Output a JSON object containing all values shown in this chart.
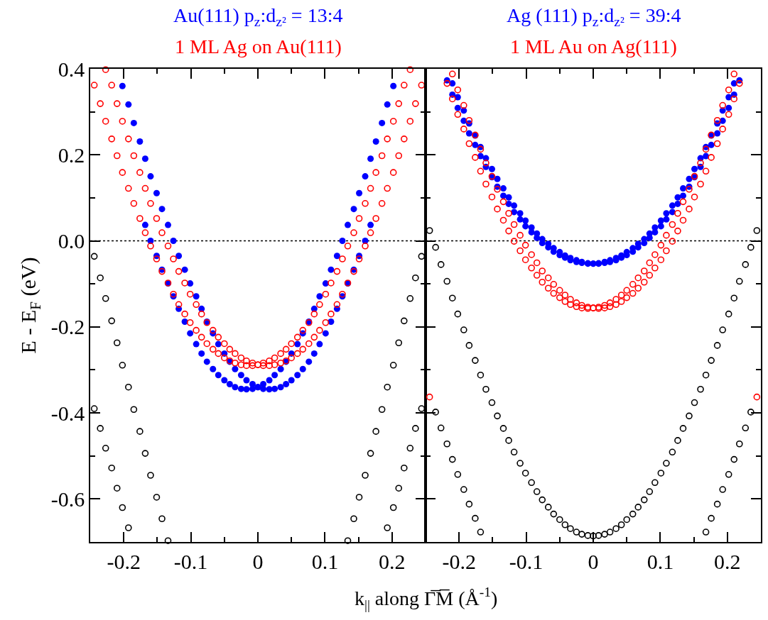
{
  "chart_data": [
    {
      "type": "scatter",
      "xlabel": "k$_{||}$ along Γ̅M̅ (Å$^{-1}$)",
      "ylabel": "E - E$_{F}$ (eV)",
      "xlim": [
        -0.25,
        0.25
      ],
      "ylim": [
        -0.7,
        0.4
      ],
      "xticks": [
        -0.2,
        {
          "value": -0.15,
          "label": null
        },
        -0.1,
        {
          "value": -0.05,
          "label": null
        },
        0,
        {
          "value": 0.05,
          "label": null
        },
        0.1,
        {
          "value": 0.15,
          "label": null
        },
        0.2
      ],
      "yticks": [
        -0.6,
        {
          "value": -0.5,
          "label": null
        },
        -0.4,
        {
          "value": -0.3,
          "label": null
        },
        -0.2,
        {
          "value": -0.1,
          "label": null
        },
        {
          "value": 0,
          "label": "0.0"
        },
        {
          "value": 0.1,
          "label": null
        },
        0.2,
        {
          "value": 0.3,
          "label": null
        },
        0.4
      ],
      "ref_lines": [
        {
          "axis": "y",
          "value": 0,
          "color": "#000000",
          "line_style": "dotted"
        }
      ],
      "series": [
        {
          "color": "#000000",
          "marker": "circle-open",
          "x": [
            -0.244,
            -0.235,
            -0.227,
            -0.218,
            -0.21,
            -0.202,
            -0.193,
            -0.185,
            -0.176,
            -0.168,
            -0.16,
            -0.151,
            -0.143,
            -0.134,
            -0.244,
            -0.235,
            -0.227,
            -0.218,
            -0.21,
            -0.202,
            -0.193,
            0.134,
            0.143,
            0.151,
            0.16,
            0.168,
            0.176,
            0.185,
            0.193,
            0.202,
            0.21,
            0.218,
            0.227,
            0.235,
            0.244,
            0.193,
            0.202,
            0.21,
            0.218,
            0.227,
            0.235,
            0.244
          ],
          "values": [
            -0.036,
            -0.086,
            -0.134,
            -0.186,
            -0.237,
            -0.289,
            -0.34,
            -0.392,
            -0.443,
            -0.494,
            -0.545,
            -0.596,
            -0.646,
            -0.697,
            -0.39,
            -0.436,
            -0.482,
            -0.528,
            -0.575,
            -0.62,
            -0.667,
            -0.697,
            -0.646,
            -0.596,
            -0.545,
            -0.494,
            -0.443,
            -0.392,
            -0.34,
            -0.289,
            -0.237,
            -0.186,
            -0.134,
            -0.086,
            -0.036,
            -0.667,
            -0.62,
            -0.575,
            -0.528,
            -0.482,
            -0.436,
            -0.39
          ]
        },
        {
          "name": "Au(111) p$_{z}$:d$_{z²}$ = 13:4",
          "color": "#0000ff",
          "marker": "circle",
          "x": [
            -0.202,
            -0.193,
            -0.185,
            -0.176,
            -0.168,
            -0.16,
            -0.151,
            -0.143,
            -0.134,
            -0.126,
            -0.118,
            -0.109,
            -0.101,
            -0.092,
            -0.084,
            -0.076,
            -0.067,
            -0.059,
            -0.05,
            -0.042,
            -0.034,
            -0.025,
            -0.017,
            -0.008,
            0,
            0.008,
            0.017,
            0.025,
            0.034,
            0.042,
            0.05,
            0.059,
            0.067,
            0.076,
            0.084,
            0.092,
            0.101,
            0.109,
            0.118,
            0.126,
            0.134,
            0.143,
            0.151,
            0.16,
            0.168,
            -0.168,
            -0.16,
            -0.151,
            -0.143,
            -0.134,
            -0.126,
            -0.118,
            -0.109,
            -0.101,
            -0.092,
            -0.084,
            -0.076,
            -0.067,
            -0.059,
            -0.05,
            -0.042,
            -0.034,
            -0.025,
            -0.017,
            -0.008,
            0,
            0.008,
            0.017,
            0.025,
            0.034,
            0.042,
            0.05,
            0.059,
            0.067,
            0.076,
            0.084,
            0.092,
            0.101,
            0.109,
            0.118,
            0.126,
            0.134,
            0.143,
            0.151,
            0.16,
            0.168,
            0.176,
            0.185,
            0.193,
            0.202
          ],
          "values": [
            0.36,
            0.317,
            0.274,
            0.231,
            0.191,
            0.15,
            0.111,
            0.074,
            0.037,
            0.0,
            -0.035,
            -0.067,
            -0.099,
            -0.129,
            -0.158,
            -0.188,
            -0.215,
            -0.24,
            -0.262,
            -0.281,
            -0.298,
            -0.312,
            -0.324,
            -0.333,
            -0.34,
            -0.344,
            -0.345,
            -0.344,
            -0.34,
            -0.333,
            -0.324,
            -0.312,
            -0.298,
            -0.281,
            -0.262,
            -0.24,
            -0.215,
            -0.188,
            -0.158,
            -0.129,
            -0.099,
            -0.067,
            -0.035,
            0.0,
            0.037,
            0.037,
            0.0,
            -0.035,
            -0.067,
            -0.099,
            -0.129,
            -0.158,
            -0.188,
            -0.215,
            -0.24,
            -0.262,
            -0.281,
            -0.298,
            -0.312,
            -0.324,
            -0.333,
            -0.34,
            -0.344,
            -0.345,
            -0.344,
            -0.34,
            -0.333,
            -0.324,
            -0.312,
            -0.298,
            -0.281,
            -0.262,
            -0.24,
            -0.215,
            -0.188,
            -0.158,
            -0.129,
            -0.099,
            -0.067,
            -0.035,
            0.0,
            0.037,
            0.074,
            0.111,
            0.15,
            0.191,
            0.231,
            0.274,
            0.317,
            0.36
          ]
        },
        {
          "name": "1 ML Ag on Au(111)",
          "color": "#ff0000",
          "marker": "circle-open",
          "x": [
            -0.244,
            -0.235,
            -0.227,
            -0.218,
            -0.21,
            -0.202,
            -0.193,
            -0.185,
            -0.176,
            -0.168,
            -0.16,
            -0.151,
            -0.143,
            -0.134,
            -0.126,
            -0.118,
            -0.109,
            -0.101,
            -0.092,
            -0.084,
            -0.076,
            -0.067,
            -0.059,
            -0.05,
            -0.042,
            -0.034,
            -0.025,
            -0.017,
            -0.008,
            0,
            0.008,
            0.017,
            0.025,
            0.034,
            0.042,
            0.05,
            0.059,
            0.067,
            0.076,
            0.084,
            0.092,
            0.101,
            0.109,
            0.118,
            0.126,
            0.134,
            0.143,
            0.151,
            0.16,
            0.168,
            0.176,
            0.185,
            0.193,
            0.202,
            0.21,
            0.218,
            0.227,
            -0.227,
            -0.218,
            -0.21,
            -0.202,
            -0.193,
            -0.185,
            -0.176,
            -0.168,
            -0.16,
            -0.151,
            -0.143,
            -0.134,
            -0.126,
            -0.118,
            -0.109,
            -0.101,
            -0.092,
            -0.084,
            -0.076,
            -0.067,
            -0.059,
            -0.05,
            -0.042,
            -0.034,
            -0.025,
            -0.017,
            -0.008,
            0,
            0.008,
            0.017,
            0.025,
            0.034,
            0.042,
            0.05,
            0.059,
            0.067,
            0.076,
            0.084,
            0.092,
            0.101,
            0.109,
            0.118,
            0.126,
            0.134,
            0.143,
            0.151,
            0.16,
            0.168,
            0.176,
            0.185,
            0.193,
            0.202,
            0.21,
            0.218,
            0.227,
            0.235,
            0.244
          ],
          "values": [
            0.362,
            0.319,
            0.278,
            0.237,
            0.198,
            0.159,
            0.122,
            0.087,
            0.052,
            0.019,
            -0.012,
            -0.042,
            -0.071,
            -0.098,
            -0.124,
            -0.148,
            -0.17,
            -0.19,
            -0.208,
            -0.224,
            -0.239,
            -0.252,
            -0.262,
            -0.272,
            -0.279,
            -0.284,
            -0.288,
            -0.29,
            -0.29,
            -0.288,
            -0.284,
            -0.279,
            -0.272,
            -0.262,
            -0.252,
            -0.239,
            -0.224,
            -0.208,
            -0.19,
            -0.17,
            -0.148,
            -0.124,
            -0.098,
            -0.071,
            -0.042,
            -0.012,
            0.019,
            0.052,
            0.087,
            0.122,
            0.159,
            0.198,
            0.237,
            0.278,
            0.319,
            0.362,
            0.398,
            0.398,
            0.362,
            0.319,
            0.278,
            0.237,
            0.198,
            0.159,
            0.122,
            0.087,
            0.052,
            0.019,
            -0.012,
            -0.042,
            -0.071,
            -0.098,
            -0.124,
            -0.148,
            -0.17,
            -0.19,
            -0.208,
            -0.224,
            -0.239,
            -0.252,
            -0.262,
            -0.272,
            -0.279,
            -0.284,
            -0.288,
            -0.29,
            -0.29,
            -0.288,
            -0.284,
            -0.279,
            -0.272,
            -0.262,
            -0.252,
            -0.239,
            -0.224,
            -0.208,
            -0.19,
            -0.17,
            -0.148,
            -0.124,
            -0.098,
            -0.071,
            -0.042,
            -0.012,
            0.019,
            0.052,
            0.087,
            0.122,
            0.159,
            0.198,
            0.237,
            0.278,
            0.319,
            0.362
          ]
        }
      ]
    },
    {
      "type": "scatter",
      "tick_labels": "x",
      "xlim": [
        -0.25,
        0.25
      ],
      "ylim": [
        -0.7,
        0.4
      ],
      "xticks": [
        -0.2,
        {
          "value": -0.15,
          "label": null
        },
        -0.1,
        {
          "value": -0.05,
          "label": null
        },
        0,
        {
          "value": 0.05,
          "label": null
        },
        0.1,
        {
          "value": 0.15,
          "label": null
        },
        0.2
      ],
      "yticks": [
        -0.6,
        {
          "value": -0.5,
          "label": null
        },
        -0.4,
        {
          "value": -0.3,
          "label": null
        },
        -0.2,
        {
          "value": -0.1,
          "label": null
        },
        0,
        {
          "value": 0.1,
          "label": null
        },
        0.2,
        {
          "value": 0.3,
          "label": null
        },
        0.4
      ],
      "ref_lines": [
        {
          "axis": "y",
          "value": 0,
          "color": "#000000",
          "line_style": "dotted"
        }
      ],
      "series": [
        {
          "color": "#000000",
          "marker": "circle-open",
          "x": [
            -0.244,
            -0.235,
            -0.227,
            -0.218,
            -0.21,
            -0.202,
            -0.193,
            -0.185,
            -0.176,
            -0.168,
            -0.16,
            -0.151,
            -0.143,
            -0.134,
            -0.126,
            -0.118,
            -0.109,
            -0.101,
            -0.092,
            -0.084,
            -0.076,
            -0.067,
            -0.059,
            -0.05,
            -0.042,
            -0.034,
            -0.025,
            -0.017,
            -0.008,
            0,
            0.008,
            0.017,
            0.025,
            0.034,
            0.042,
            0.05,
            0.059,
            0.067,
            0.076,
            0.084,
            0.092,
            0.101,
            0.109,
            0.118,
            0.126,
            0.134,
            0.143,
            0.151,
            0.16,
            0.168,
            0.176,
            0.185,
            0.193,
            0.202,
            0.21,
            0.218,
            0.227,
            0.235,
            0.244,
            -0.235,
            -0.227,
            -0.218,
            -0.21,
            -0.202,
            -0.193,
            -0.185,
            -0.176,
            -0.168,
            0.168,
            0.176,
            0.185,
            0.193,
            0.202,
            0.21,
            0.218,
            0.227,
            0.235
          ],
          "values": [
            0.024,
            -0.015,
            -0.055,
            -0.094,
            -0.133,
            -0.17,
            -0.207,
            -0.243,
            -0.278,
            -0.312,
            -0.345,
            -0.376,
            -0.407,
            -0.436,
            -0.464,
            -0.491,
            -0.517,
            -0.54,
            -0.562,
            -0.583,
            -0.602,
            -0.619,
            -0.635,
            -0.648,
            -0.66,
            -0.669,
            -0.677,
            -0.682,
            -0.685,
            -0.686,
            -0.685,
            -0.682,
            -0.677,
            -0.669,
            -0.66,
            -0.648,
            -0.635,
            -0.619,
            -0.602,
            -0.583,
            -0.562,
            -0.54,
            -0.517,
            -0.491,
            -0.464,
            -0.436,
            -0.407,
            -0.376,
            -0.345,
            -0.312,
            -0.278,
            -0.243,
            -0.207,
            -0.17,
            -0.133,
            -0.094,
            -0.055,
            -0.015,
            0.024,
            -0.398,
            -0.435,
            -0.472,
            -0.508,
            -0.543,
            -0.578,
            -0.612,
            -0.645,
            -0.677,
            -0.677,
            -0.645,
            -0.612,
            -0.578,
            -0.543,
            -0.508,
            -0.472,
            -0.435,
            -0.398
          ]
        },
        {
          "name": "Ag (111) p$_{z}$:d$_{z²}$ = 39:4",
          "color": "#0000ff",
          "marker": "circle",
          "x": [
            -0.218,
            -0.21,
            -0.202,
            -0.193,
            -0.185,
            -0.176,
            -0.168,
            -0.16,
            -0.151,
            -0.143,
            -0.134,
            -0.126,
            -0.118,
            -0.109,
            -0.101,
            -0.092,
            -0.084,
            -0.076,
            -0.067,
            -0.059,
            -0.05,
            -0.042,
            -0.034,
            -0.025,
            -0.017,
            -0.008,
            0,
            0.008,
            0.017,
            0.025,
            0.034,
            0.042,
            0.05,
            0.059,
            0.067,
            0.076,
            0.084,
            0.092,
            0.101,
            0.109,
            0.118,
            0.126,
            0.134,
            0.143,
            0.151,
            0.16,
            0.168,
            0.176,
            0.185,
            0.193,
            0.202,
            0.21,
            -0.21,
            -0.202,
            -0.193,
            -0.185,
            -0.176,
            -0.168,
            -0.16,
            -0.151,
            -0.143,
            -0.134,
            -0.126,
            -0.118,
            -0.109,
            -0.101,
            -0.092,
            -0.084,
            -0.076,
            -0.067,
            -0.059,
            -0.05,
            -0.042,
            -0.034,
            -0.025,
            -0.017,
            -0.008,
            0,
            0.008,
            0.017,
            0.025,
            0.034,
            0.042,
            0.05,
            0.059,
            0.067,
            0.076,
            0.084,
            0.092,
            0.101,
            0.109,
            0.118,
            0.126,
            0.134,
            0.143,
            0.151,
            0.16,
            0.168,
            0.176,
            0.185,
            0.193,
            0.202,
            0.21,
            0.218
          ],
          "values": [
            0.373,
            0.34,
            0.309,
            0.279,
            0.25,
            0.223,
            0.197,
            0.172,
            0.148,
            0.126,
            0.105,
            0.086,
            0.067,
            0.05,
            0.034,
            0.02,
            0.007,
            -0.005,
            -0.015,
            -0.025,
            -0.033,
            -0.039,
            -0.045,
            -0.049,
            -0.051,
            -0.053,
            -0.053,
            -0.052,
            -0.049,
            -0.045,
            -0.04,
            -0.034,
            -0.026,
            -0.017,
            -0.007,
            0.004,
            0.017,
            0.031,
            0.047,
            0.064,
            0.082,
            0.101,
            0.122,
            0.144,
            0.167,
            0.192,
            0.218,
            0.245,
            0.273,
            0.303,
            0.334,
            0.366,
            0.366,
            0.334,
            0.303,
            0.273,
            0.245,
            0.218,
            0.192,
            0.167,
            0.144,
            0.122,
            0.101,
            0.082,
            0.064,
            0.047,
            0.031,
            0.017,
            0.004,
            -0.007,
            -0.017,
            -0.026,
            -0.034,
            -0.04,
            -0.045,
            -0.049,
            -0.052,
            -0.053,
            -0.053,
            -0.051,
            -0.049,
            -0.045,
            -0.039,
            -0.033,
            -0.025,
            -0.015,
            -0.005,
            0.007,
            0.02,
            0.034,
            0.05,
            0.067,
            0.086,
            0.105,
            0.126,
            0.148,
            0.172,
            0.197,
            0.223,
            0.25,
            0.279,
            0.309,
            0.34,
            0.373
          ]
        },
        {
          "name": "1 ML Au on Ag(111)",
          "color": "#ff0000",
          "marker": "circle-open",
          "x": [
            -0.21,
            -0.202,
            -0.193,
            -0.185,
            -0.176,
            -0.168,
            -0.16,
            -0.151,
            -0.143,
            -0.134,
            -0.126,
            -0.118,
            -0.109,
            -0.101,
            -0.092,
            -0.084,
            -0.076,
            -0.067,
            -0.059,
            -0.05,
            -0.042,
            -0.034,
            -0.025,
            -0.017,
            -0.008,
            0,
            0.008,
            0.017,
            0.025,
            0.034,
            0.042,
            0.05,
            0.059,
            0.067,
            0.076,
            0.084,
            0.092,
            0.101,
            0.109,
            0.118,
            0.126,
            0.134,
            0.143,
            0.151,
            0.16,
            0.168,
            0.176,
            0.185,
            0.193,
            0.202,
            0.21,
            0.218,
            -0.218,
            -0.21,
            -0.202,
            -0.193,
            -0.185,
            -0.176,
            -0.168,
            -0.16,
            -0.151,
            -0.143,
            -0.134,
            -0.126,
            -0.118,
            -0.109,
            -0.101,
            -0.092,
            -0.084,
            -0.076,
            -0.067,
            -0.059,
            -0.05,
            -0.042,
            -0.034,
            -0.025,
            -0.017,
            -0.008,
            0,
            0.008,
            0.017,
            0.025,
            0.034,
            0.042,
            0.05,
            0.059,
            0.067,
            0.076,
            0.084,
            0.092,
            0.101,
            0.109,
            0.118,
            0.126,
            0.134,
            0.143,
            0.151,
            0.16,
            0.168,
            0.176,
            0.185,
            0.193,
            0.202,
            0.21,
            -0.244,
            0.244
          ],
          "values": [
            0.388,
            0.351,
            0.315,
            0.28,
            0.246,
            0.213,
            0.181,
            0.15,
            0.12,
            0.091,
            0.064,
            0.038,
            0.013,
            -0.01,
            -0.032,
            -0.051,
            -0.07,
            -0.086,
            -0.101,
            -0.115,
            -0.126,
            -0.136,
            -0.144,
            -0.15,
            -0.154,
            -0.156,
            -0.157,
            -0.156,
            -0.153,
            -0.148,
            -0.141,
            -0.132,
            -0.122,
            -0.11,
            -0.096,
            -0.08,
            -0.063,
            -0.044,
            -0.023,
            -0.001,
            0.023,
            0.048,
            0.074,
            0.102,
            0.132,
            0.162,
            0.194,
            0.226,
            0.26,
            0.294,
            0.33,
            0.366,
            0.366,
            0.33,
            0.294,
            0.26,
            0.226,
            0.194,
            0.162,
            0.132,
            0.102,
            0.074,
            0.048,
            0.023,
            -0.001,
            -0.023,
            -0.044,
            -0.063,
            -0.08,
            -0.096,
            -0.11,
            -0.122,
            -0.132,
            -0.141,
            -0.148,
            -0.153,
            -0.156,
            -0.157,
            -0.156,
            -0.154,
            -0.15,
            -0.144,
            -0.136,
            -0.126,
            -0.115,
            -0.101,
            -0.086,
            -0.07,
            -0.051,
            -0.032,
            -0.01,
            0.013,
            0.038,
            0.064,
            0.091,
            0.12,
            0.15,
            0.181,
            0.213,
            0.246,
            0.28,
            0.315,
            0.351,
            0.388,
            -0.363,
            -0.363
          ]
        }
      ]
    }
  ]
}
